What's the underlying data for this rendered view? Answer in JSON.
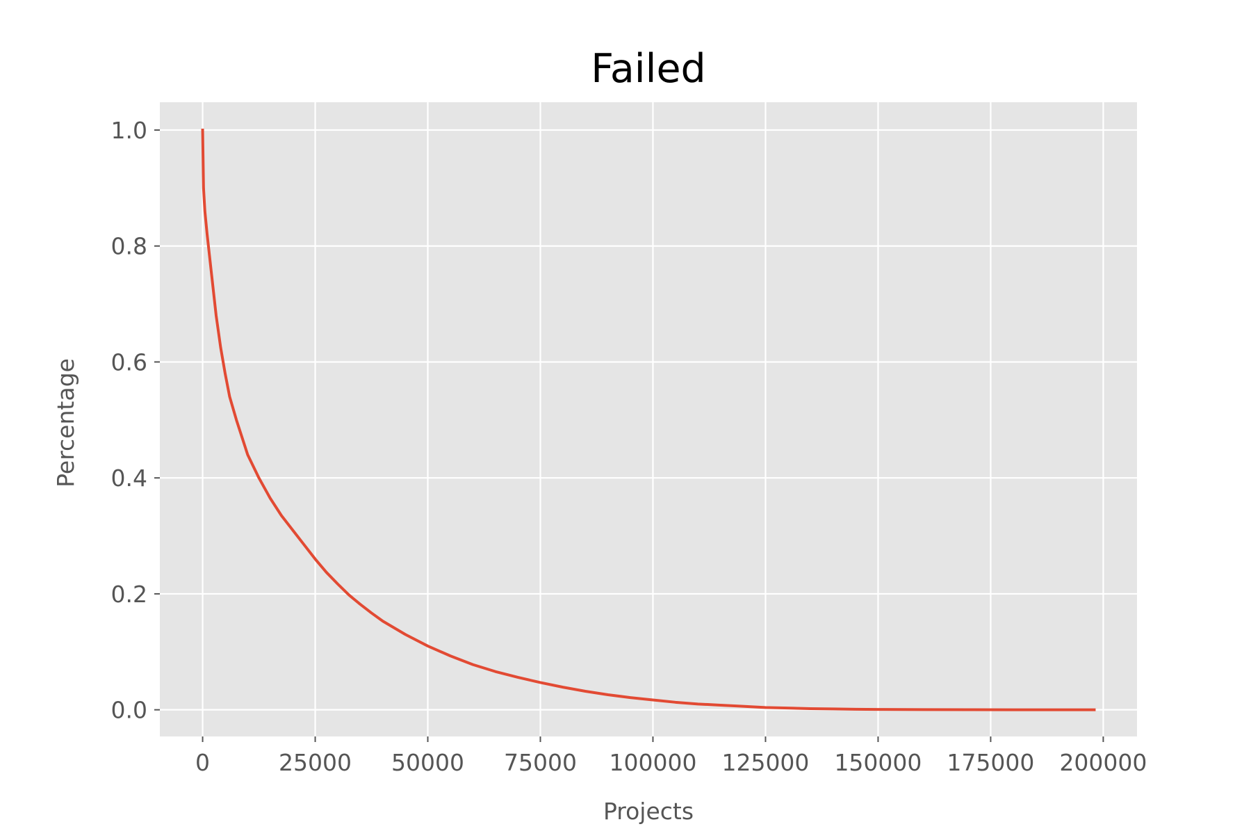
{
  "chart_data": {
    "type": "line",
    "title": "Failed",
    "xlabel": "Projects",
    "ylabel": "Percentage",
    "xlim": [
      -9500,
      207500
    ],
    "ylim": [
      -0.046,
      1.048
    ],
    "x_ticks": [
      0,
      25000,
      50000,
      75000,
      100000,
      125000,
      150000,
      175000,
      200000
    ],
    "x_tick_labels": [
      "0",
      "25000",
      "50000",
      "75000",
      "100000",
      "125000",
      "150000",
      "175000",
      "200000"
    ],
    "y_ticks": [
      0.0,
      0.2,
      0.4,
      0.6,
      0.8,
      1.0
    ],
    "y_tick_labels": [
      "0.0",
      "0.2",
      "0.4",
      "0.6",
      "0.8",
      "1.0"
    ],
    "grid": true,
    "legend": "none",
    "colors": {
      "plot_background": "#e5e5e5",
      "grid": "#ffffff",
      "line": "#e24a33",
      "tick_text": "#555555",
      "title_text": "#000000"
    },
    "series": [
      {
        "color": "#e24a33",
        "x": [
          0,
          200,
          500,
          1000,
          2000,
          3000,
          4000,
          5000,
          6000,
          7500,
          10000,
          12500,
          15000,
          17500,
          20000,
          22500,
          25000,
          27500,
          30000,
          32500,
          35000,
          37500,
          40000,
          45000,
          50000,
          55000,
          60000,
          65000,
          70000,
          75000,
          80000,
          85000,
          90000,
          95000,
          100000,
          105000,
          110000,
          115000,
          120000,
          125000,
          130000,
          135000,
          140000,
          145000,
          150000,
          160000,
          170000,
          180000,
          190000,
          198000
        ],
        "y": [
          1.0,
          0.9,
          0.86,
          0.82,
          0.75,
          0.68,
          0.625,
          0.58,
          0.54,
          0.5,
          0.44,
          0.4,
          0.365,
          0.335,
          0.31,
          0.285,
          0.26,
          0.237,
          0.217,
          0.198,
          0.182,
          0.167,
          0.153,
          0.13,
          0.11,
          0.093,
          0.078,
          0.066,
          0.056,
          0.047,
          0.039,
          0.032,
          0.026,
          0.021,
          0.017,
          0.013,
          0.01,
          0.008,
          0.006,
          0.004,
          0.003,
          0.002,
          0.0015,
          0.001,
          0.0007,
          0.0004,
          0.0002,
          0.0001,
          5e-05,
          0.0
        ]
      }
    ]
  }
}
